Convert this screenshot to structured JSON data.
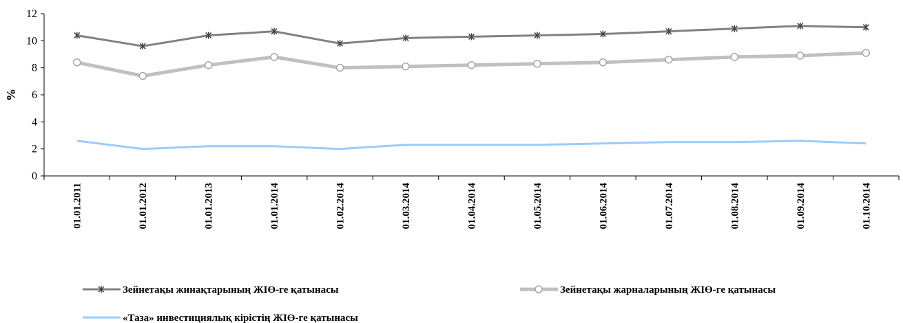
{
  "chart_data": {
    "type": "line",
    "ylabel": "%",
    "ylim": [
      0,
      12
    ],
    "yticks": [
      0,
      2,
      4,
      6,
      8,
      10,
      12
    ],
    "grid": false,
    "legend_position": "bottom",
    "categories": [
      "01.01.2011",
      "01.01.2012",
      "01.01.2013",
      "01.01.2014",
      "01.02.2014",
      "01.03.2014",
      "01.04.2014",
      "01.05.2014",
      "01.06.2014",
      "01.07.2014",
      "01.08.2014",
      "01.09.2014",
      "01.10.2014"
    ],
    "series": [
      {
        "name": "Зейнетақы жинақтарының ЖІӨ-ге қатынасы",
        "color": "#808080",
        "marker": "asterisk",
        "values": [
          10.4,
          9.6,
          10.4,
          10.7,
          9.8,
          10.2,
          10.3,
          10.4,
          10.5,
          10.7,
          10.9,
          11.1,
          11.0
        ]
      },
      {
        "name": "Зейнетақы жарналарының ЖІӨ-ге қатынасы",
        "color": "#c0c0c0",
        "marker": "circle",
        "values": [
          8.4,
          7.4,
          8.2,
          8.8,
          8.0,
          8.1,
          8.2,
          8.3,
          8.4,
          8.6,
          8.8,
          8.9,
          9.1
        ]
      },
      {
        "name": "«Таза» инвестициялық кірістің ЖІӨ-ге қатынасы",
        "color": "#99ccff",
        "marker": "none",
        "values": [
          2.6,
          2.0,
          2.2,
          2.2,
          2.0,
          2.3,
          2.3,
          2.3,
          2.4,
          2.5,
          2.5,
          2.6,
          2.4
        ]
      }
    ]
  }
}
